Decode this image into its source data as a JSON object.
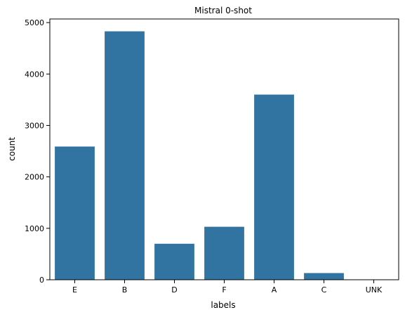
{
  "chart_data": {
    "type": "bar",
    "title": "Mistral 0-shot",
    "xlabel": "labels",
    "ylabel": "count",
    "categories": [
      "E",
      "B",
      "D",
      "F",
      "A",
      "C",
      "UNK"
    ],
    "values": [
      2590,
      4830,
      700,
      1030,
      3600,
      130,
      5
    ],
    "ylim": [
      0,
      5070
    ],
    "yticks": [
      0,
      1000,
      2000,
      3000,
      4000,
      5000
    ],
    "grid": false,
    "bar_color": "#3274a1"
  }
}
